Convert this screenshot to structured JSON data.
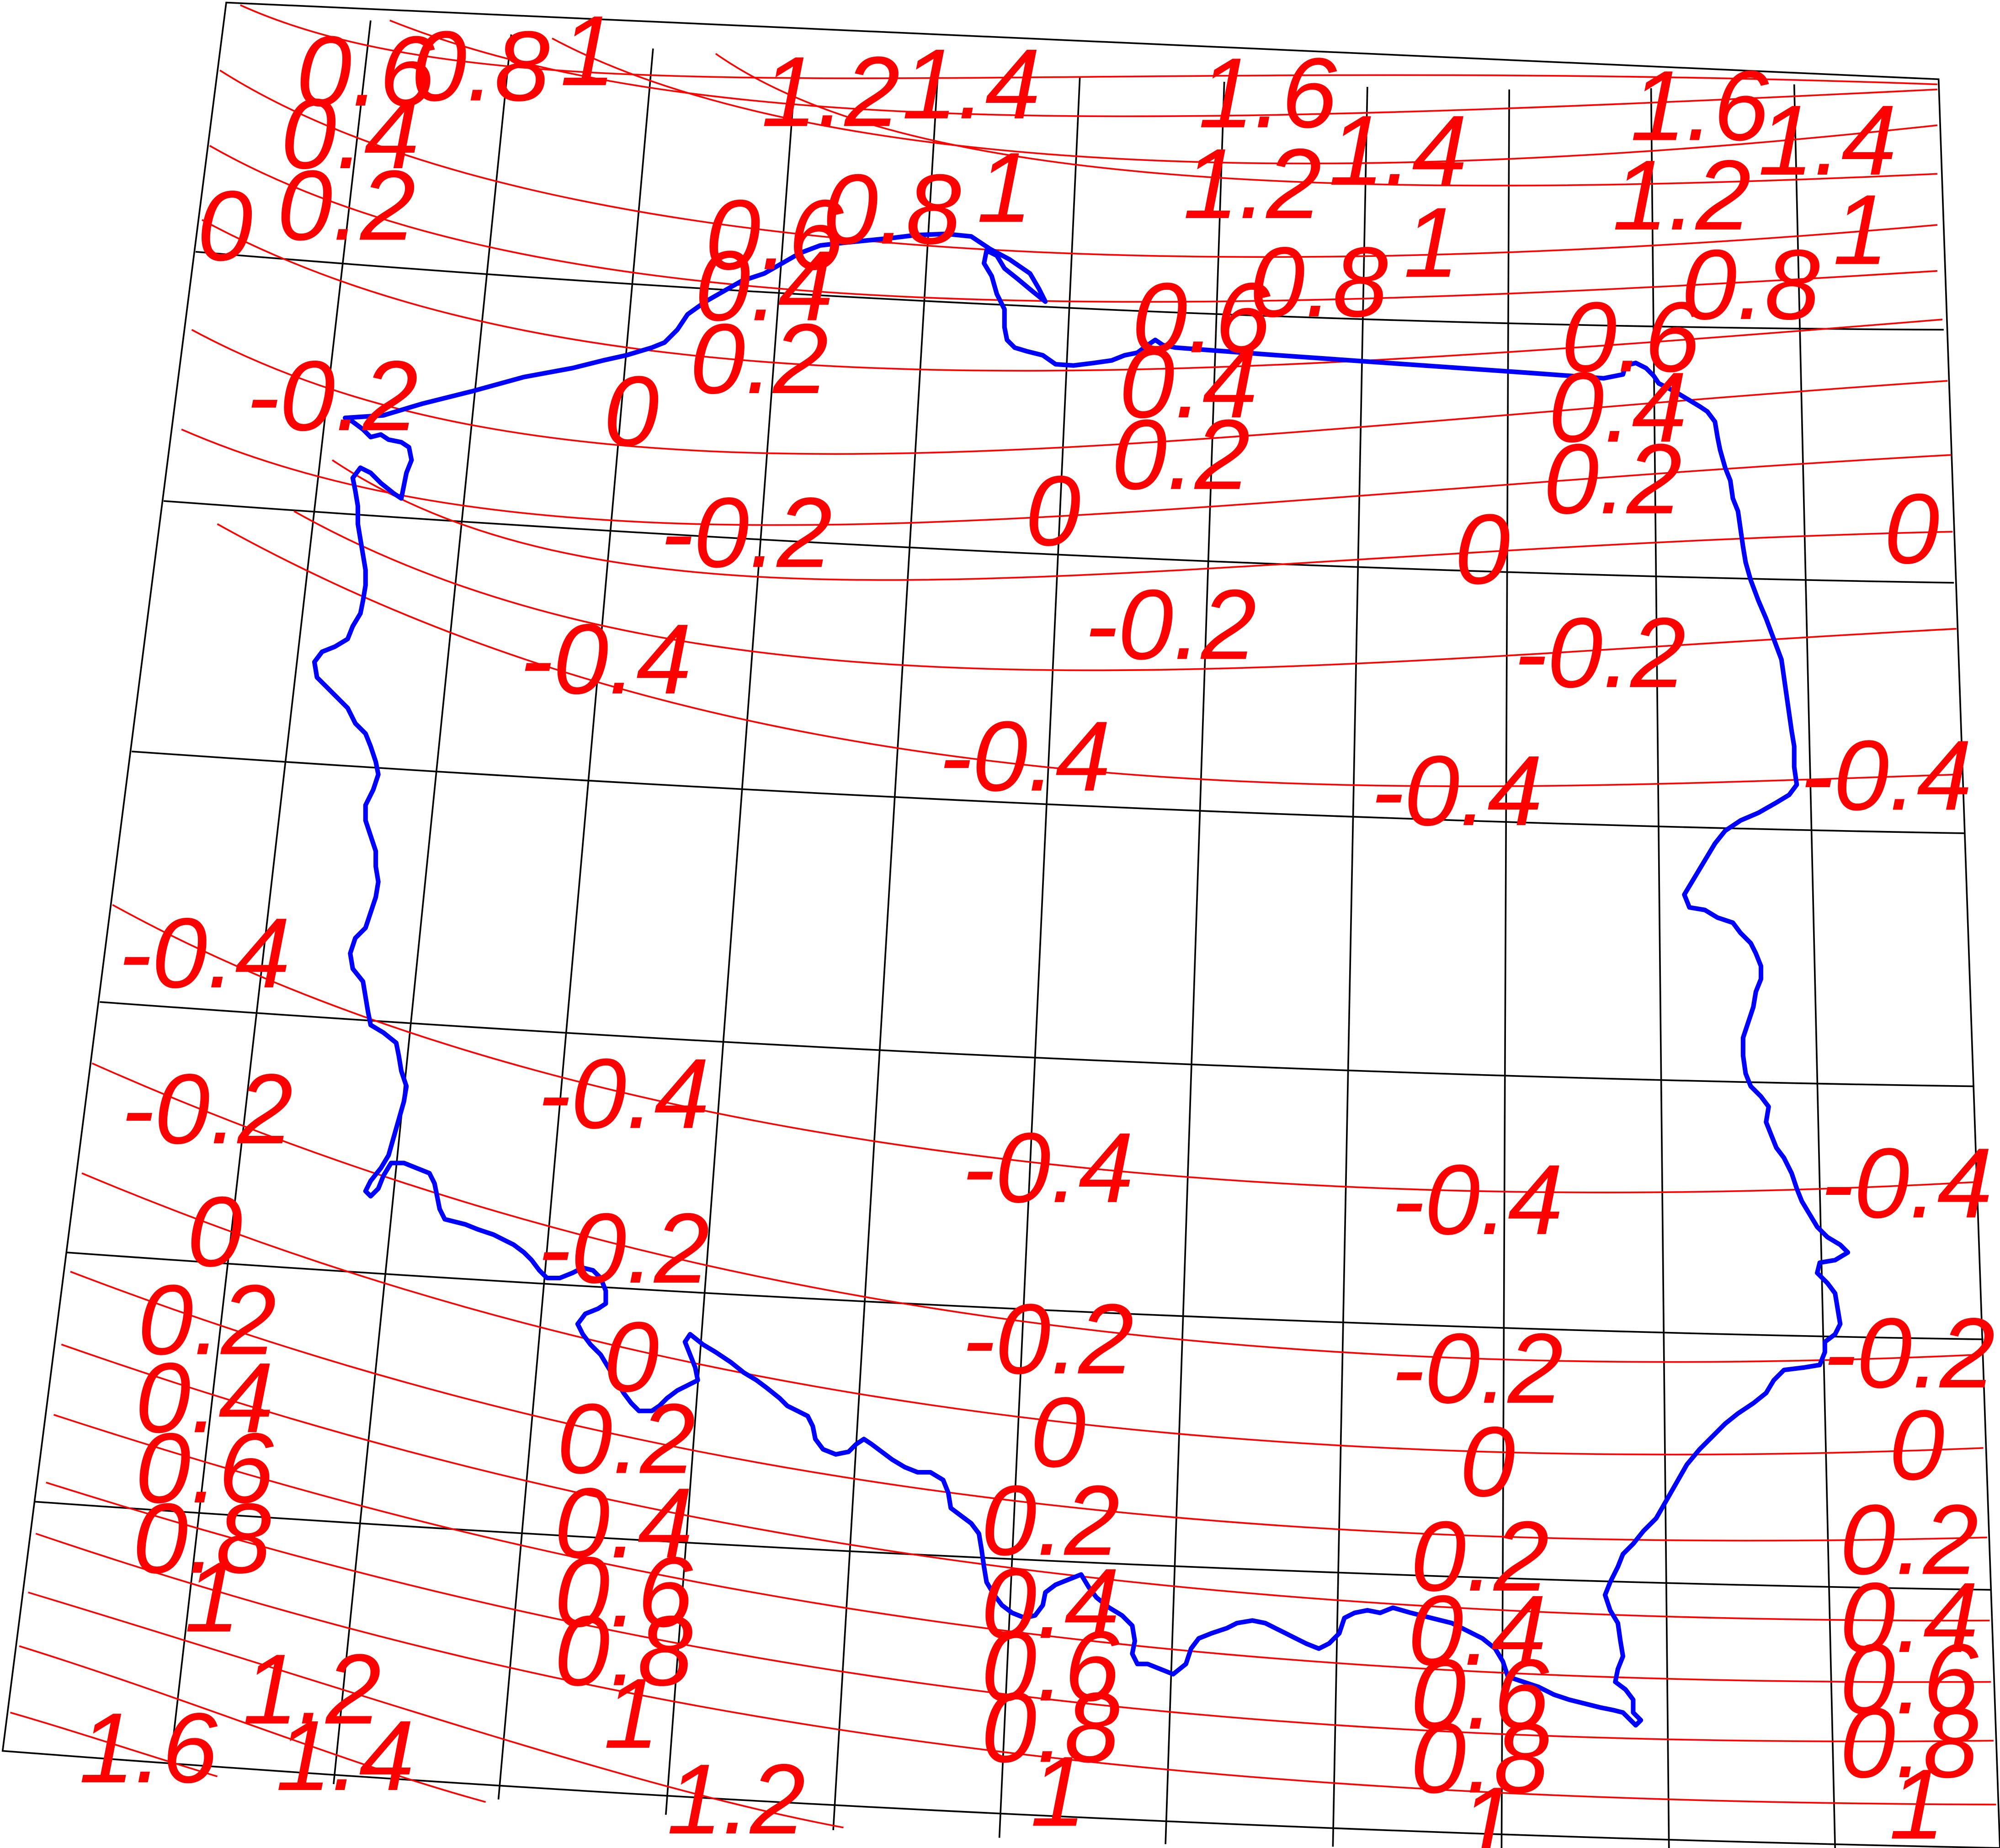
{
  "colors": {
    "background": "#ffffff",
    "graticule": "#000000",
    "isolines": "#ff0000",
    "isoline_labels": "#ff0000",
    "boundary": "#0000ff"
  },
  "map": {
    "contour_levels": [
      "1.6",
      "1.4",
      "1.2",
      "1",
      "0.8",
      "0.6",
      "0.4",
      "0.2",
      "0",
      "-0.2",
      "-0.4"
    ],
    "contour_labels": [
      "0.6",
      "0.8",
      "1",
      "1.2",
      "1.4",
      "1.6",
      "1.6",
      "1.4",
      "0.4",
      "1",
      "1.4",
      "1.2",
      "1.2",
      "0.2",
      "0.8",
      "0.6",
      "1",
      "0.8",
      "0.8",
      "1",
      "0",
      "0.4",
      "0.6",
      "0.6",
      "0.2",
      "0.4",
      "0.4",
      "-0.2",
      "0",
      "0.2",
      "0.2",
      "-0.2",
      "0",
      "0",
      "0",
      "-0.2",
      "-0.2",
      "-0.4",
      "-0.4",
      "-0.4",
      "-0.4",
      "-0.4",
      "-0.4",
      "-0.4",
      "-0.4",
      "-0.4",
      "-0.2",
      "-0.2",
      "-0.2",
      "-0.2",
      "-0.2",
      "0",
      "0",
      "0",
      "0",
      "0",
      "0.2",
      "0.2",
      "0.2",
      "0.2",
      "0.2",
      "0.4",
      "0.4",
      "0.4",
      "0.4",
      "0.4",
      "0.6",
      "0.6",
      "0.6",
      "0.6",
      "0.6",
      "0.8",
      "0.8",
      "0.8",
      "0.8",
      "0.8",
      "1",
      "1",
      "1",
      "1",
      "1",
      "1.2",
      "1.2",
      "1.4",
      "1.6"
    ]
  }
}
